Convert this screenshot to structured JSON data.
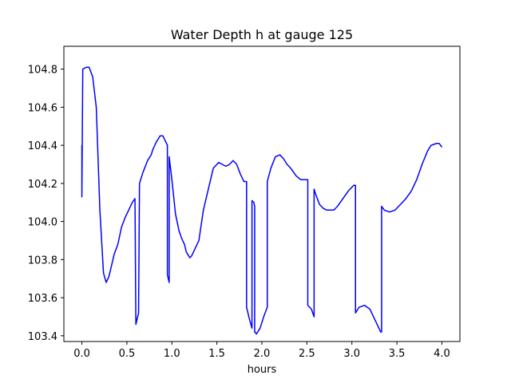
{
  "chart_data": {
    "type": "line",
    "title": "Water Depth h at gauge 125",
    "xlabel": "hours",
    "ylabel": "",
    "xlim": [
      -0.2,
      4.2
    ],
    "ylim": [
      103.37,
      104.92
    ],
    "x_ticks": [
      0.0,
      0.5,
      1.0,
      1.5,
      2.0,
      2.5,
      3.0,
      3.5,
      4.0
    ],
    "x_tick_labels": [
      "0.0",
      "0.5",
      "1.0",
      "1.5",
      "2.0",
      "2.5",
      "3.0",
      "3.5",
      "4.0"
    ],
    "y_ticks": [
      103.4,
      103.6,
      103.8,
      104.0,
      104.2,
      104.4,
      104.6,
      104.8
    ],
    "y_tick_labels": [
      "103.4",
      "103.6",
      "103.8",
      "104.0",
      "104.2",
      "104.4",
      "104.6",
      "104.8"
    ],
    "grid": false,
    "colors": {
      "line": "#0000ff"
    },
    "series": [
      {
        "name": "",
        "x": [
          0.0,
          0.0,
          0.01,
          0.01,
          0.05,
          0.08,
          0.12,
          0.16,
          0.2,
          0.24,
          0.27,
          0.3,
          0.33,
          0.36,
          0.4,
          0.44,
          0.48,
          0.52,
          0.56,
          0.59,
          0.6,
          0.6,
          0.62,
          0.63,
          0.64,
          0.68,
          0.73,
          0.77,
          0.79,
          0.83,
          0.87,
          0.9,
          0.92,
          0.95,
          0.95,
          0.97,
          0.97,
          1.0,
          1.04,
          1.08,
          1.11,
          1.14,
          1.16,
          1.2,
          1.22,
          1.25,
          1.3,
          1.35,
          1.4,
          1.46,
          1.52,
          1.56,
          1.6,
          1.64,
          1.68,
          1.72,
          1.76,
          1.8,
          1.83,
          1.83,
          1.86,
          1.89,
          1.89,
          1.91,
          1.92,
          1.92,
          1.94,
          1.98,
          2.02,
          2.06,
          2.06,
          2.1,
          2.15,
          2.2,
          2.24,
          2.28,
          2.32,
          2.38,
          2.43,
          2.48,
          2.5,
          2.51,
          2.51,
          2.55,
          2.58,
          2.58,
          2.6,
          2.64,
          2.68,
          2.72,
          2.76,
          2.8,
          2.84,
          2.9,
          2.96,
          3.02,
          3.04,
          3.04,
          3.08,
          3.14,
          3.2,
          3.26,
          3.32,
          3.33,
          3.33,
          3.36,
          3.42,
          3.48,
          3.54,
          3.6,
          3.66,
          3.72,
          3.78,
          3.84,
          3.88,
          3.94,
          3.97,
          4.0
        ],
        "y": [
          104.4,
          104.13,
          104.8,
          104.8,
          104.81,
          104.81,
          104.76,
          104.6,
          104.06,
          103.73,
          103.68,
          103.71,
          103.77,
          103.83,
          103.88,
          103.97,
          104.02,
          104.06,
          104.1,
          104.12,
          103.46,
          103.46,
          103.5,
          103.52,
          104.2,
          104.26,
          104.32,
          104.35,
          104.38,
          104.42,
          104.45,
          104.45,
          104.43,
          104.4,
          103.72,
          103.68,
          104.34,
          104.22,
          104.04,
          103.95,
          103.91,
          103.88,
          103.84,
          103.81,
          103.82,
          103.85,
          103.9,
          104.06,
          104.16,
          104.28,
          104.31,
          104.3,
          104.29,
          104.3,
          104.32,
          104.3,
          104.25,
          104.21,
          104.21,
          103.55,
          103.49,
          103.44,
          104.11,
          104.1,
          104.08,
          103.42,
          103.41,
          103.44,
          103.5,
          103.55,
          104.21,
          104.28,
          104.34,
          104.35,
          104.33,
          104.3,
          104.28,
          104.24,
          104.22,
          104.22,
          104.22,
          104.22,
          103.56,
          103.54,
          103.5,
          104.17,
          104.14,
          104.09,
          104.07,
          104.06,
          104.06,
          104.06,
          104.08,
          104.12,
          104.16,
          104.19,
          104.19,
          103.52,
          103.55,
          103.56,
          103.54,
          103.48,
          103.42,
          103.42,
          104.08,
          104.06,
          104.05,
          104.06,
          104.09,
          104.12,
          104.16,
          104.22,
          104.3,
          104.37,
          104.4,
          104.41,
          104.41,
          104.39
        ]
      }
    ]
  }
}
